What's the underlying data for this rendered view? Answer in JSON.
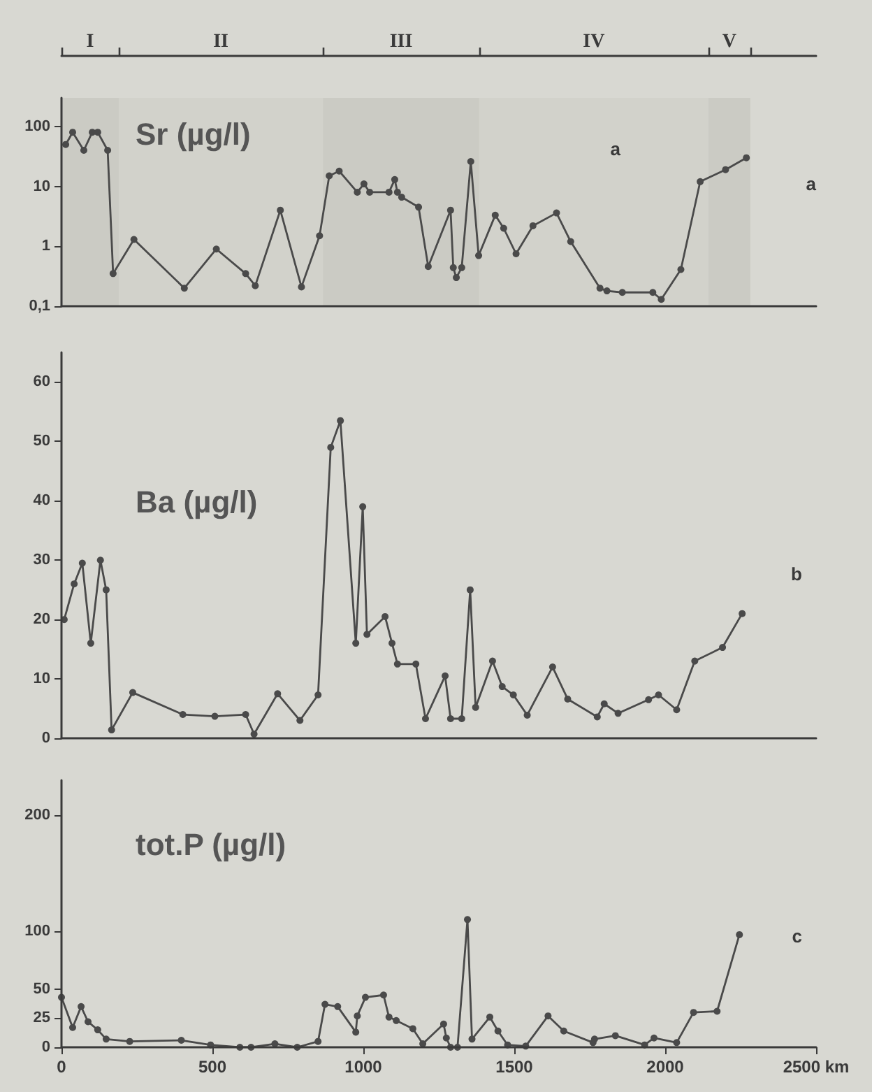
{
  "chart_data": [
    {
      "type": "line",
      "title": "Sr (µg/l)",
      "annotations": [
        "a",
        "a"
      ],
      "log": "y",
      "marker": "circle",
      "line_style": "solid",
      "grid": false,
      "tick_labels": "y",
      "bands": [
        {
          "axis": "x",
          "from": 0,
          "to": 190,
          "label": "I",
          "color": "#cbcbc4"
        },
        {
          "axis": "x",
          "from": 190,
          "to": 866,
          "label": "II",
          "color": "#d2d2cb"
        },
        {
          "axis": "x",
          "from": 866,
          "to": 1384,
          "label": "III",
          "color": "#cbcbc4"
        },
        {
          "axis": "x",
          "from": 1384,
          "to": 2143,
          "label": "IV",
          "color": "#d2d2cb"
        },
        {
          "axis": "x",
          "from": 2143,
          "to": 2282,
          "label": "V",
          "color": "#cbcbc4"
        }
      ],
      "x": [
        14,
        37,
        74,
        102,
        120,
        153,
        171,
        240,
        407,
        513,
        610,
        642,
        725,
        795,
        855,
        887,
        920,
        980,
        1002,
        1021,
        1085,
        1104,
        1113,
        1127,
        1183,
        1215,
        1289,
        1298,
        1308,
        1326,
        1356,
        1382,
        1437,
        1465,
        1506,
        1562,
        1640,
        1687,
        1784,
        1807,
        1858,
        1959,
        1987,
        2052,
        2116,
        2200,
        2269
      ],
      "series": [
        {
          "color": "#4a4a4a",
          "values": [
            50,
            80,
            40,
            80,
            80,
            40,
            0.35,
            1.3,
            0.2,
            0.9,
            0.35,
            0.22,
            4,
            0.21,
            1.5,
            15,
            18,
            8,
            11,
            8,
            8,
            13,
            8,
            6.6,
            4.5,
            0.46,
            4,
            0.44,
            0.3,
            0.44,
            26,
            0.7,
            3.3,
            2,
            0.75,
            2.2,
            3.6,
            1.2,
            0.2,
            0.18,
            0.17,
            0.17,
            0.13,
            0.41,
            12,
            19,
            30
          ]
        }
      ],
      "xlim": [
        0,
        2500
      ],
      "ylim": [
        0.1,
        300
      ],
      "yticks": [
        {
          "value": 0.1,
          "label": "0,1"
        },
        1,
        10,
        100
      ]
    },
    {
      "type": "line",
      "title": "Ba (µg/l)",
      "annotations": [
        "b"
      ],
      "marker": "circle",
      "line_style": "solid",
      "grid": false,
      "tick_labels": "y",
      "x": [
        9,
        42,
        69,
        97,
        129,
        148,
        166,
        236,
        402,
        508,
        610,
        638,
        716,
        790,
        850,
        892,
        924,
        975,
        998,
        1012,
        1072,
        1095,
        1113,
        1174,
        1206,
        1271,
        1289,
        1326,
        1354,
        1372,
        1428,
        1460,
        1497,
        1543,
        1627,
        1677,
        1775,
        1798,
        1844,
        1945,
        1978,
        2038,
        2098,
        2190,
        2255
      ],
      "series": [
        {
          "color": "#4a4a4a",
          "values": [
            20,
            26,
            29.5,
            16,
            30,
            25,
            1.4,
            7.7,
            4,
            3.7,
            4,
            0.7,
            7.5,
            3,
            7.3,
            49,
            53.5,
            16,
            39,
            17.5,
            20.5,
            16,
            12.5,
            12.5,
            3.3,
            10.5,
            3.3,
            3.3,
            25,
            5.2,
            13,
            8.7,
            7.3,
            3.9,
            12,
            6.6,
            3.6,
            5.8,
            4.2,
            6.5,
            7.3,
            4.8,
            13,
            15.3,
            21
          ]
        }
      ],
      "xlim": [
        0,
        2500
      ],
      "ylim": [
        0,
        65
      ],
      "yticks": [
        0,
        10,
        20,
        30,
        40,
        50,
        60
      ]
    },
    {
      "type": "line",
      "title": "tot.P (µg/l)",
      "annotations": [
        "c"
      ],
      "marker": "circle",
      "line_style": "solid",
      "grid": false,
      "x": [
        0,
        37,
        65,
        88,
        120,
        148,
        226,
        397,
        494,
        591,
        628,
        707,
        781,
        850,
        873,
        915,
        975,
        980,
        1007,
        1067,
        1085,
        1109,
        1164,
        1197,
        1266,
        1275,
        1289,
        1312,
        1345,
        1360,
        1419,
        1446,
        1478,
        1538,
        1612,
        1664,
        1761,
        1766,
        1835,
        1932,
        1963,
        2038,
        2094,
        2172,
        2246
      ],
      "series": [
        {
          "color": "#4a4a4a",
          "values": [
            43,
            17,
            35,
            22,
            15,
            7,
            5,
            6,
            2,
            0,
            0,
            3,
            0,
            5,
            37,
            35,
            13,
            27,
            43,
            45,
            26,
            23,
            16,
            3,
            20,
            8,
            0,
            0,
            110,
            7,
            26,
            14,
            2,
            1,
            27,
            14,
            4,
            7,
            10,
            2,
            8,
            4,
            30,
            31,
            97
          ]
        }
      ],
      "xlim": [
        0,
        2500
      ],
      "ylim": [
        0,
        230
      ],
      "xticks": [
        0,
        500,
        1000,
        1500,
        2000,
        {
          "value": 2500,
          "label": "2500 km"
        }
      ],
      "yticks": [
        0,
        25,
        50,
        100,
        200
      ]
    }
  ]
}
